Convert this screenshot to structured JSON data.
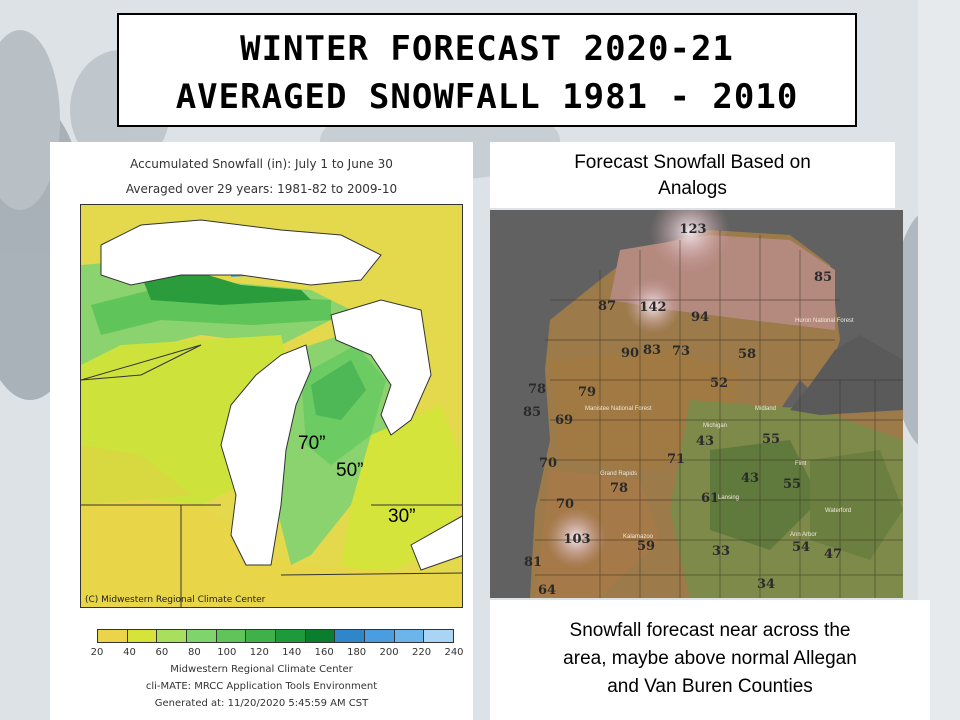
{
  "title": {
    "line1": "Winter Forecast 2020-21",
    "line2": "Averaged Snowfall 1981 - 2010"
  },
  "left_map": {
    "header_line1": "Accumulated Snowfall (in): July 1 to June 30",
    "header_line2": "Averaged over 29 years: 1981-82 to 2009-10",
    "copyright": "(C) Midwestern Regional Climate Center",
    "annotations": [
      "70”",
      "50”",
      "30”"
    ],
    "legend_ticks": [
      "20",
      "40",
      "60",
      "80",
      "100",
      "120",
      "140",
      "160",
      "180",
      "200",
      "220",
      "240"
    ],
    "legend_colors": [
      "#ecd44a",
      "#d6e43a",
      "#a8df5c",
      "#7fd56c",
      "#5fc45a",
      "#3fb04a",
      "#1f9a3a",
      "#0a7e2e",
      "#2f86c8",
      "#4a9ee0",
      "#6cb4ec",
      "#a9d4f4"
    ],
    "footer_line1": "Midwestern Regional Climate Center",
    "footer_line2": "cli-MATE: MRCC Application Tools Environment",
    "footer_line3": "Generated at: 11/20/2020 5:45:59 AM CST"
  },
  "right_panel": {
    "top_text_line1": "Forecast Snowfall Based on",
    "top_text_line2": "Analogs",
    "bottom_text_line1": "Snowfall forecast near across the",
    "bottom_text_line2": "area, maybe above normal Allegan",
    "bottom_text_line3": "and Van Buren Counties"
  },
  "forecast_values": [
    "123",
    "85",
    "87",
    "142",
    "94",
    "90",
    "83",
    "73",
    "58",
    "78",
    "79",
    "52",
    "85",
    "69",
    "43",
    "55",
    "70",
    "71",
    "43",
    "55",
    "78",
    "61",
    "70",
    "103",
    "59",
    "33",
    "54",
    "47",
    "81",
    "34",
    "64"
  ],
  "forecast_places": [
    "Huron National Forest",
    "Manistee National Forest",
    "Midland",
    "Michigan",
    "Grand Rapids",
    "Lansing",
    "Flint",
    "Kalamazoo",
    "Ann Arbor",
    "Waterford"
  ]
}
